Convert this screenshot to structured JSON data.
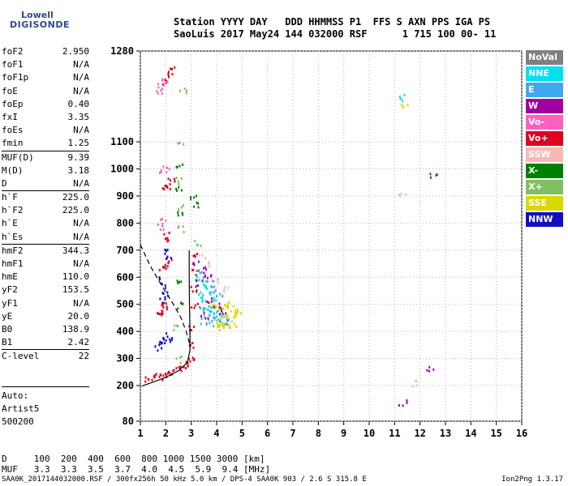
{
  "logo": {
    "top": "Lowell",
    "bottom": "DIGISONDE",
    "color": "#2b4a8a"
  },
  "header": {
    "line1": "Station YYYY DAY   DDD HHMMSS P1  FFS S AXN PPS IGA PS",
    "line2": "SaoLuis 2017 May24 144 032000 RSF      1 715 100 00- 11"
  },
  "params": [
    {
      "name": "foF2",
      "value": "2.950"
    },
    {
      "name": "foF1",
      "value": "N/A"
    },
    {
      "name": "foF1p",
      "value": "N/A"
    },
    {
      "name": "foE",
      "value": "N/A"
    },
    {
      "name": "foEp",
      "value": "0.40"
    },
    {
      "name": "fxI",
      "value": "3.35"
    },
    {
      "name": "foEs",
      "value": "N/A"
    },
    {
      "name": "fmin",
      "value": "1.25"
    },
    {
      "name": "MUF(D)",
      "value": "9.39",
      "sep": true
    },
    {
      "name": "M(D)",
      "value": "3.18"
    },
    {
      "name": "D",
      "value": "N/A"
    },
    {
      "name": "h`F",
      "value": "225.0",
      "sep": true
    },
    {
      "name": "h`F2",
      "value": "225.0"
    },
    {
      "name": "h`E",
      "value": "N/A"
    },
    {
      "name": "h`Es",
      "value": "N/A"
    },
    {
      "name": "hmF2",
      "value": "344.3",
      "sep": true
    },
    {
      "name": "hmF1",
      "value": "N/A"
    },
    {
      "name": "hmE",
      "value": "110.0"
    },
    {
      "name": "yF2",
      "value": "153.5"
    },
    {
      "name": "yF1",
      "value": "N/A"
    },
    {
      "name": "yE",
      "value": "20.0"
    },
    {
      "name": "B0",
      "value": "138.9"
    },
    {
      "name": "B1",
      "value": "2.42"
    },
    {
      "name": "C-level",
      "value": "22",
      "sep": true
    }
  ],
  "auto": {
    "line1": "Auto:",
    "line2": "Artist5",
    "line3": "500200"
  },
  "legend": [
    {
      "label": "NoVal",
      "bg": "#808080",
      "fg": "#ffffff"
    },
    {
      "label": "NNE",
      "bg": "#00e0f0",
      "fg": "#ffffff"
    },
    {
      "label": "E",
      "bg": "#40a8f0",
      "fg": "#ffffff"
    },
    {
      "label": "W",
      "bg": "#a000a0",
      "fg": "#ffffff"
    },
    {
      "label": "Vo-",
      "bg": "#ff60c0",
      "fg": "#ffffff"
    },
    {
      "label": "Vo+",
      "bg": "#e00020",
      "fg": "#ffffff"
    },
    {
      "label": "SSW",
      "bg": "#f8b8b8",
      "fg": "#ffffff"
    },
    {
      "label": "X-",
      "bg": "#008000",
      "fg": "#ffffff"
    },
    {
      "label": "X+",
      "bg": "#80c060",
      "fg": "#ffffff"
    },
    {
      "label": "SSE",
      "bg": "#d8d800",
      "fg": "#ffffff"
    },
    {
      "label": "NNW",
      "bg": "#1010c0",
      "fg": "#ffffff"
    }
  ],
  "bottom": {
    "line1": "D     100  200  400  600  800 1000 1500 3000 [km]",
    "line2": "MUF   3.3  3.3  3.5  3.7  4.0  4.5  5.9  9.4 [MHz]"
  },
  "footer": {
    "left": "SAA0K_2017144032000.RSF / 300fx256h 50 kHz 5.0 km / DPS-4 SAA0K 903 / 2.6 S 315.8 E",
    "right": "Ion2Png 1.3.17"
  },
  "chart_data": {
    "type": "scatter",
    "title": "",
    "xlabel": "",
    "ylabel": "",
    "xlim": [
      1,
      16
    ],
    "ylim": [
      80,
      1280
    ],
    "x_ticks": [
      "1",
      "2",
      "3",
      "4",
      "5",
      "6",
      "7",
      "8",
      "9",
      "10",
      "11",
      "12",
      "13",
      "14",
      "15",
      "16"
    ],
    "y_ticks": [
      "80",
      "200",
      "300",
      "400",
      "500",
      "600",
      "700",
      "800",
      "900",
      "1000",
      "1100",
      "1280"
    ],
    "y_scale": "piecewise (80-200 compressed, then linear 100 km per division)",
    "grid": "vertical dotted at each MHz, horizontal dotted at each 100 km",
    "profile_curve": {
      "name": "",
      "color": "#000000",
      "points": [
        [
          1.05,
          198
        ],
        [
          1.5,
          213
        ],
        [
          2.0,
          230
        ],
        [
          2.5,
          255
        ],
        [
          2.85,
          285
        ],
        [
          2.95,
          330
        ],
        [
          2.95,
          400
        ],
        [
          2.93,
          500
        ],
        [
          2.92,
          600
        ],
        [
          2.92,
          700
        ]
      ]
    },
    "model_curve": {
      "name": "",
      "color": "#000000",
      "dashed": true,
      "points": [
        [
          1.0,
          720
        ],
        [
          1.4,
          640
        ],
        [
          1.9,
          560
        ],
        [
          2.3,
          500
        ],
        [
          2.6,
          450
        ],
        [
          2.8,
          400
        ],
        [
          2.95,
          350
        ]
      ]
    },
    "traces": [
      {
        "name": "Vo+",
        "color": "#e00020",
        "points": [
          [
            1.3,
            228
          ],
          [
            1.5,
            232
          ],
          [
            1.7,
            236
          ],
          [
            1.9,
            242
          ],
          [
            2.1,
            248
          ],
          [
            2.3,
            255
          ],
          [
            2.5,
            262
          ],
          [
            2.7,
            272
          ],
          [
            2.85,
            285
          ],
          [
            2.95,
            310
          ],
          [
            3.0,
            350
          ],
          [
            3.05,
            420
          ],
          [
            3.1,
            500
          ],
          [
            3.12,
            560
          ],
          [
            3.15,
            620
          ],
          [
            3.2,
            680
          ]
        ]
      },
      {
        "name": "Vo+",
        "color": "#e00020",
        "points": [
          [
            1.75,
            460
          ],
          [
            1.85,
            475
          ],
          [
            1.95,
            490
          ],
          [
            2.0,
            505
          ],
          [
            1.85,
            640
          ],
          [
            1.95,
            655
          ],
          [
            2.05,
            670
          ],
          [
            1.95,
            745
          ],
          [
            2.05,
            760
          ],
          [
            2.0,
            930
          ],
          [
            2.1,
            945
          ],
          [
            2.2,
            960
          ],
          [
            2.0,
            1180
          ],
          [
            2.1,
            1200
          ],
          [
            2.2,
            1220
          ]
        ]
      },
      {
        "name": "Vo-",
        "color": "#ff60c0",
        "points": [
          [
            1.7,
            1155
          ],
          [
            1.8,
            1170
          ],
          [
            1.9,
            1185
          ],
          [
            1.85,
            995
          ],
          [
            2.0,
            1010
          ],
          [
            1.8,
            790
          ],
          [
            1.85,
            810
          ]
        ]
      },
      {
        "name": "NNW",
        "color": "#1010c0",
        "points": [
          [
            1.7,
            345
          ],
          [
            1.8,
            355
          ],
          [
            1.9,
            365
          ],
          [
            2.0,
            375
          ],
          [
            2.1,
            385
          ],
          [
            1.9,
            520
          ],
          [
            2.0,
            540
          ],
          [
            1.95,
            575
          ],
          [
            1.85,
            595
          ],
          [
            2.05,
            680
          ],
          [
            1.95,
            700
          ]
        ]
      },
      {
        "name": "X-",
        "color": "#008000",
        "points": [
          [
            2.5,
            930
          ],
          [
            2.55,
            1010
          ],
          [
            3.1,
            900
          ],
          [
            3.1,
            870
          ],
          [
            2.5,
            840
          ],
          [
            2.55,
            590
          ],
          [
            2.6,
            500
          ]
        ]
      },
      {
        "name": "X+",
        "color": "#80c060",
        "points": [
          [
            2.55,
            860
          ],
          [
            2.6,
            780
          ],
          [
            2.55,
            960
          ],
          [
            2.6,
            1100
          ],
          [
            2.65,
            1150
          ],
          [
            3.2,
            730
          ],
          [
            2.35,
            420
          ],
          [
            2.45,
            300
          ]
        ]
      },
      {
        "name": "NNE",
        "color": "#00e0f0",
        "points": [
          [
            3.2,
            600
          ],
          [
            3.4,
            580
          ],
          [
            3.6,
            560
          ],
          [
            3.8,
            540
          ],
          [
            4.0,
            520
          ],
          [
            3.3,
            540
          ],
          [
            3.5,
            520
          ],
          [
            3.7,
            500
          ],
          [
            3.9,
            480
          ],
          [
            4.1,
            470
          ],
          [
            3.6,
            470
          ],
          [
            3.9,
            450
          ],
          [
            11.3,
            1130
          ]
        ]
      },
      {
        "name": "E",
        "color": "#40a8f0",
        "points": [
          [
            3.3,
            620
          ],
          [
            3.5,
            600
          ],
          [
            3.7,
            580
          ],
          [
            3.9,
            560
          ],
          [
            4.1,
            540
          ],
          [
            3.4,
            500
          ],
          [
            3.6,
            480
          ],
          [
            3.8,
            460
          ],
          [
            4.0,
            440
          ],
          [
            4.2,
            430
          ],
          [
            4.4,
            440
          ],
          [
            3.5,
            440
          ],
          [
            3.7,
            430
          ]
        ]
      },
      {
        "name": "SSE",
        "color": "#d8d800",
        "points": [
          [
            3.8,
            500
          ],
          [
            4.0,
            490
          ],
          [
            4.2,
            480
          ],
          [
            4.4,
            470
          ],
          [
            4.6,
            460
          ],
          [
            4.8,
            470
          ],
          [
            4.0,
            440
          ],
          [
            4.2,
            430
          ],
          [
            4.4,
            420
          ],
          [
            4.6,
            430
          ],
          [
            4.8,
            480
          ],
          [
            4.5,
            500
          ],
          [
            4.3,
            510
          ],
          [
            4.1,
            420
          ],
          [
            11.4,
            1110
          ]
        ]
      },
      {
        "name": "W",
        "color": "#a000a0",
        "points": [
          [
            3.2,
            650
          ],
          [
            3.4,
            630
          ],
          [
            3.6,
            610
          ],
          [
            3.3,
            580
          ],
          [
            3.7,
            520
          ],
          [
            4.0,
            500
          ],
          [
            4.2,
            470
          ],
          [
            3.5,
            460
          ],
          [
            12.5,
            975
          ],
          [
            12.4,
            265
          ],
          [
            11.3,
            145
          ]
        ]
      },
      {
        "name": "SSW",
        "color": "#f8b8b8",
        "points": [
          [
            3.4,
            680
          ],
          [
            3.6,
            650
          ],
          [
            3.9,
            590
          ],
          [
            4.3,
            560
          ],
          [
            11.8,
            210
          ],
          [
            11.3,
            905
          ]
        ]
      }
    ]
  }
}
